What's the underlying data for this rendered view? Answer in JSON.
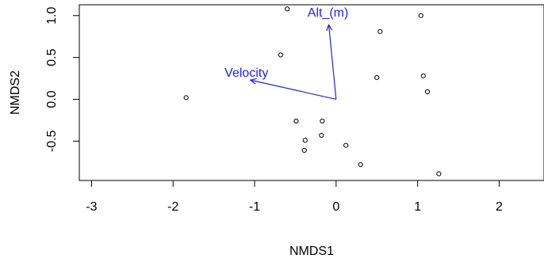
{
  "chart_data": {
    "type": "scatter",
    "xlabel": "NMDS1",
    "ylabel": "NMDS2",
    "xlim": [
      -3.15,
      2.55
    ],
    "ylim": [
      -0.97,
      1.13
    ],
    "xticks": [
      {
        "value": -3,
        "label": "-3"
      },
      {
        "value": -2,
        "label": "-2"
      },
      {
        "value": -1,
        "label": "-1"
      },
      {
        "value": 0,
        "label": "0"
      },
      {
        "value": 1,
        "label": "1"
      },
      {
        "value": 2,
        "label": "2"
      }
    ],
    "yticks": [
      {
        "value": -0.5,
        "label": "-0.5"
      },
      {
        "value": 0,
        "label": "0.0"
      },
      {
        "value": 0.5,
        "label": "0.5"
      },
      {
        "value": 1,
        "label": "1.0"
      }
    ],
    "points": [
      {
        "x": -1.84,
        "y": 0.02
      },
      {
        "x": -0.6,
        "y": 1.08
      },
      {
        "x": -0.68,
        "y": 0.53
      },
      {
        "x": -0.49,
        "y": -0.26
      },
      {
        "x": -0.17,
        "y": -0.26
      },
      {
        "x": -0.18,
        "y": -0.43
      },
      {
        "x": -0.38,
        "y": -0.49
      },
      {
        "x": -0.39,
        "y": -0.61
      },
      {
        "x": 0.12,
        "y": -0.55
      },
      {
        "x": 0.3,
        "y": -0.78
      },
      {
        "x": 0.5,
        "y": 0.26
      },
      {
        "x": 0.54,
        "y": 0.81
      },
      {
        "x": 1.04,
        "y": 1.0
      },
      {
        "x": 1.07,
        "y": 0.28
      },
      {
        "x": 1.12,
        "y": 0.09
      },
      {
        "x": 1.26,
        "y": -0.89
      }
    ],
    "vectors": [
      {
        "name": "Alt_(m)",
        "x": -0.09,
        "y": 0.89,
        "label_x": -0.1,
        "label_y": 0.99
      },
      {
        "name": "Velocity",
        "x": -1.05,
        "y": 0.23,
        "label_x": -1.1,
        "label_y": 0.27
      }
    ],
    "grid": false,
    "colors": {
      "points": "#000000",
      "vectors": "#2222dd",
      "axis": "#000000"
    }
  }
}
